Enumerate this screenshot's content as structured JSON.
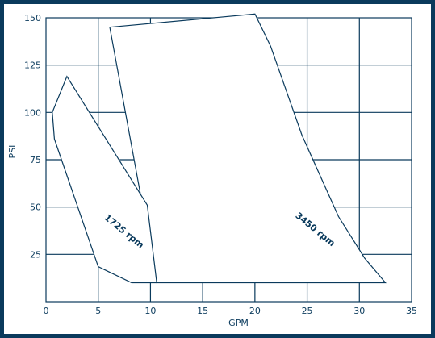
{
  "chart_data": {
    "type": "area",
    "xlabel": "GPM",
    "ylabel": "PSI",
    "xlim": [
      0,
      35
    ],
    "ylim": [
      0,
      150
    ],
    "x_ticks": [
      0,
      5,
      10,
      15,
      20,
      25,
      30,
      35
    ],
    "y_ticks": [
      25,
      50,
      75,
      100,
      125,
      150
    ],
    "grid": true,
    "series": [
      {
        "name": "1725 rpm",
        "color": "#0a3a5c",
        "points": [
          [
            0.6,
            100
          ],
          [
            2.0,
            119
          ],
          [
            9.7,
            51
          ],
          [
            10.6,
            10
          ],
          [
            8.2,
            10
          ],
          [
            5.0,
            18.5
          ],
          [
            0.8,
            86
          ]
        ]
      },
      {
        "name": "3450 rpm",
        "color": "#0a3a5c",
        "points": [
          [
            6.1,
            145
          ],
          [
            20.0,
            152
          ],
          [
            21.5,
            135
          ],
          [
            24.5,
            88
          ],
          [
            28.0,
            45
          ],
          [
            30.5,
            23
          ],
          [
            32.5,
            10
          ],
          [
            10.6,
            10
          ]
        ]
      }
    ]
  }
}
